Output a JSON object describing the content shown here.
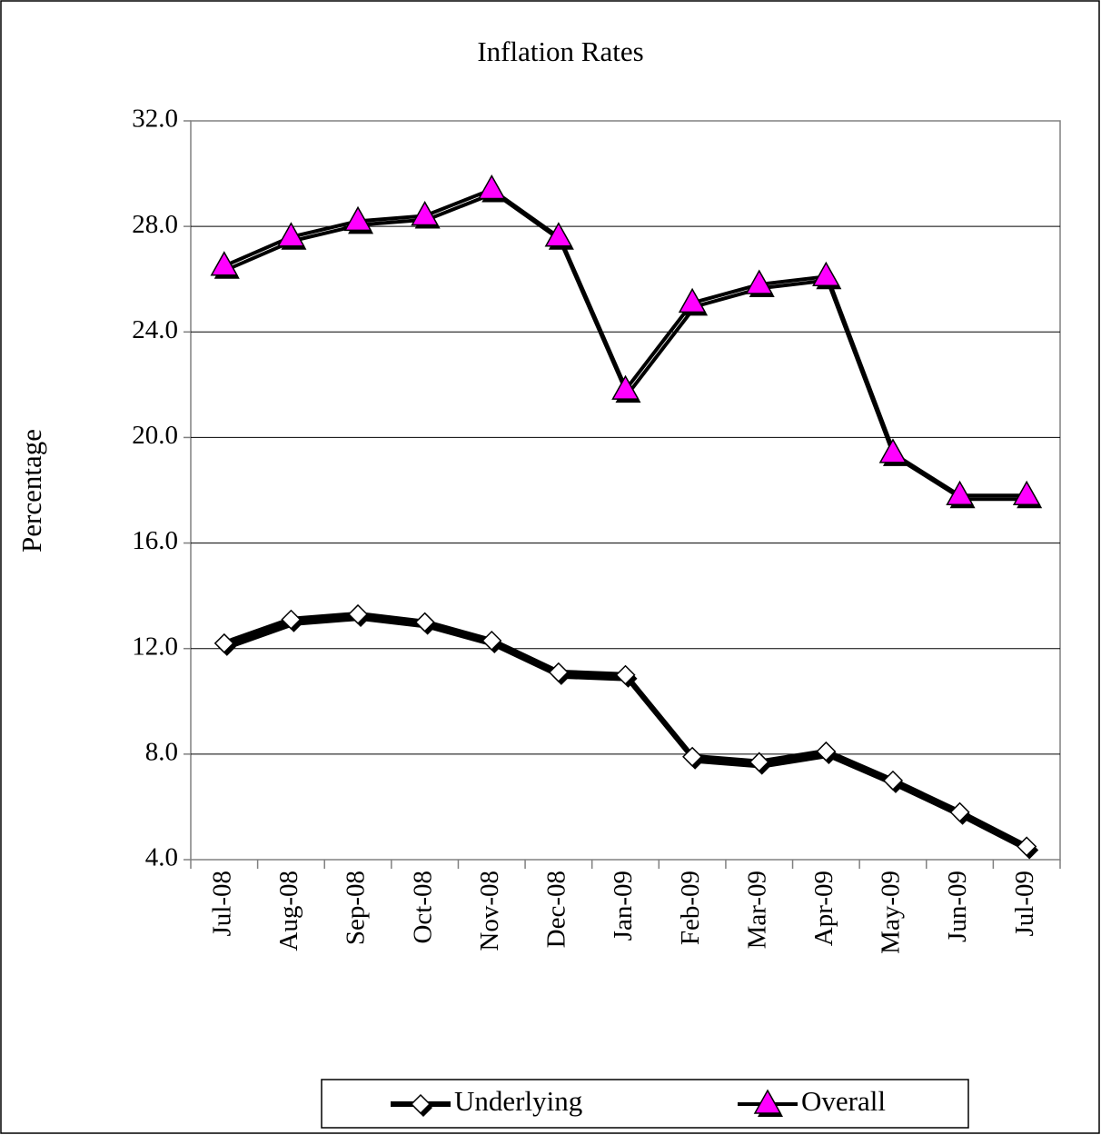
{
  "chart_data": {
    "type": "line",
    "title": "Inflation Rates",
    "y_label": "Percentage",
    "categories": [
      "Jul-08",
      "Aug-08",
      "Sep-08",
      "Oct-08",
      "Nov-08",
      "Dec-08",
      "Jan-09",
      "Feb-09",
      "Mar-09",
      "Apr-09",
      "May-09",
      "Jun-09",
      "Jul-09"
    ],
    "series": [
      {
        "name": "Underlying",
        "color": "#ffffff",
        "marker": "diamond",
        "line_width": 6,
        "values": [
          12.2,
          13.1,
          13.3,
          13.0,
          12.3,
          11.1,
          11.0,
          7.9,
          7.7,
          8.1,
          7.0,
          5.8,
          4.5
        ]
      },
      {
        "name": "Overall",
        "color": "#ff00ff",
        "marker": "triangle",
        "line_width": 4,
        "values": [
          26.5,
          27.6,
          28.2,
          28.4,
          29.4,
          27.6,
          21.8,
          25.1,
          25.8,
          26.1,
          19.4,
          17.8,
          17.8
        ]
      }
    ],
    "ylim": [
      4,
      32
    ],
    "yticks": [
      {
        "value": 4,
        "label": "4.0"
      },
      {
        "value": 8,
        "label": "8.0"
      },
      {
        "value": 12,
        "label": "12.0"
      },
      {
        "value": 16,
        "label": "16.0"
      },
      {
        "value": 20,
        "label": "20.0"
      },
      {
        "value": 24,
        "label": "24.0"
      },
      {
        "value": 28,
        "label": "28.0"
      },
      {
        "value": 32,
        "label": "32.0"
      }
    ],
    "grid": true,
    "legend": "bottom"
  }
}
